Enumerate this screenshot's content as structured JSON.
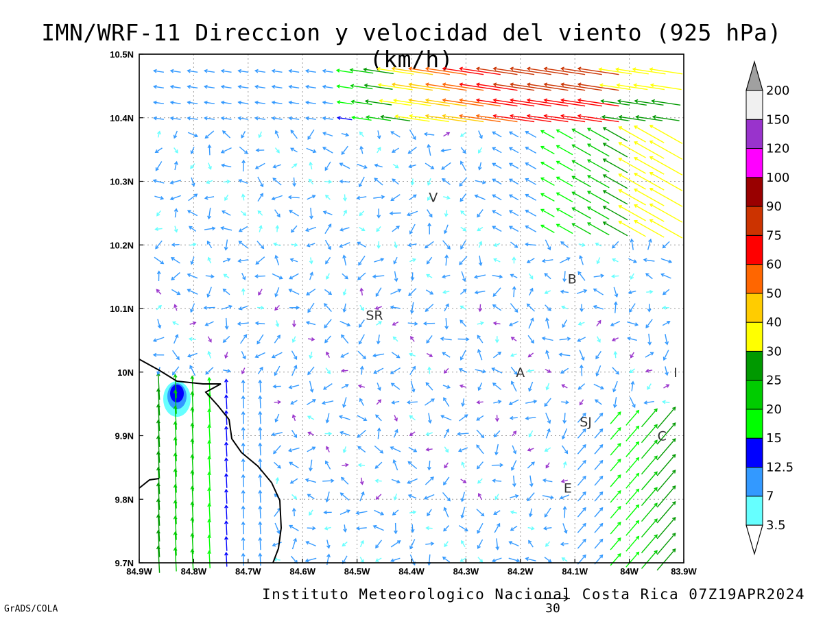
{
  "title": "IMN/WRF-11 Direccion y velocidad del viento (925 hPa)(km/h)",
  "credit": "Instituto Meteorologico Nacional Costa Rica 07Z19APR2024",
  "software": "GrADS/COLA",
  "map": {
    "lon_range": [
      -84.9,
      -83.9
    ],
    "lat_range": [
      9.7,
      10.5
    ],
    "lon_ticks": [
      {
        "v": -84.9,
        "label": "84.9W"
      },
      {
        "v": -84.8,
        "label": "84.8W"
      },
      {
        "v": -84.7,
        "label": "84.7W"
      },
      {
        "v": -84.6,
        "label": "84.6W"
      },
      {
        "v": -84.5,
        "label": "84.5W"
      },
      {
        "v": -84.4,
        "label": "84.4W"
      },
      {
        "v": -84.3,
        "label": "84.3W"
      },
      {
        "v": -84.2,
        "label": "84.2W"
      },
      {
        "v": -84.1,
        "label": "84.1W"
      },
      {
        "v": -84.0,
        "label": "84W"
      },
      {
        "v": -83.9,
        "label": "83.9W"
      }
    ],
    "lat_ticks": [
      {
        "v": 9.7,
        "label": "9.7N"
      },
      {
        "v": 9.8,
        "label": "9.8N"
      },
      {
        "v": 9.9,
        "label": "9.9N"
      },
      {
        "v": 10.0,
        "label": "10N"
      },
      {
        "v": 10.1,
        "label": "10.1N"
      },
      {
        "v": 10.2,
        "label": "10.2N"
      },
      {
        "v": 10.3,
        "label": "10.3N"
      },
      {
        "v": 10.4,
        "label": "10.4N"
      },
      {
        "v": 10.5,
        "label": "10.5N"
      }
    ],
    "grid": true,
    "cities": [
      {
        "label": "V",
        "lon": -84.36,
        "lat": 10.275
      },
      {
        "label": "SR",
        "lon": -84.468,
        "lat": 10.09
      },
      {
        "label": "B",
        "lon": -84.105,
        "lat": 10.147
      },
      {
        "label": "A",
        "lon": -84.2,
        "lat": 10.0
      },
      {
        "label": "I",
        "lon": -83.915,
        "lat": 10.0
      },
      {
        "label": "SJ",
        "lon": -84.08,
        "lat": 9.922
      },
      {
        "label": "C",
        "lon": -83.94,
        "lat": 9.9
      },
      {
        "label": "E",
        "lon": -84.113,
        "lat": 9.818
      }
    ],
    "reference_vector": {
      "value": "30",
      "speed": 30
    }
  },
  "colorbar": {
    "colors": [
      "#66ffff",
      "#3399ff",
      "#0000ff",
      "#00ff00",
      "#00cc00",
      "#009900",
      "#ffff00",
      "#ffcc00",
      "#ff6600",
      "#ff0000",
      "#cc3300",
      "#990000",
      "#ff00ff",
      "#9933cc",
      "#f0f0f0"
    ],
    "labels": [
      "3.5",
      "7",
      "12.5",
      "15",
      "20",
      "25",
      "30",
      "40",
      "50",
      "60",
      "75",
      "90",
      "100",
      "120",
      "150",
      "200"
    ],
    "over_color": "#a0a0a0",
    "under_color": "#ffffff"
  }
}
